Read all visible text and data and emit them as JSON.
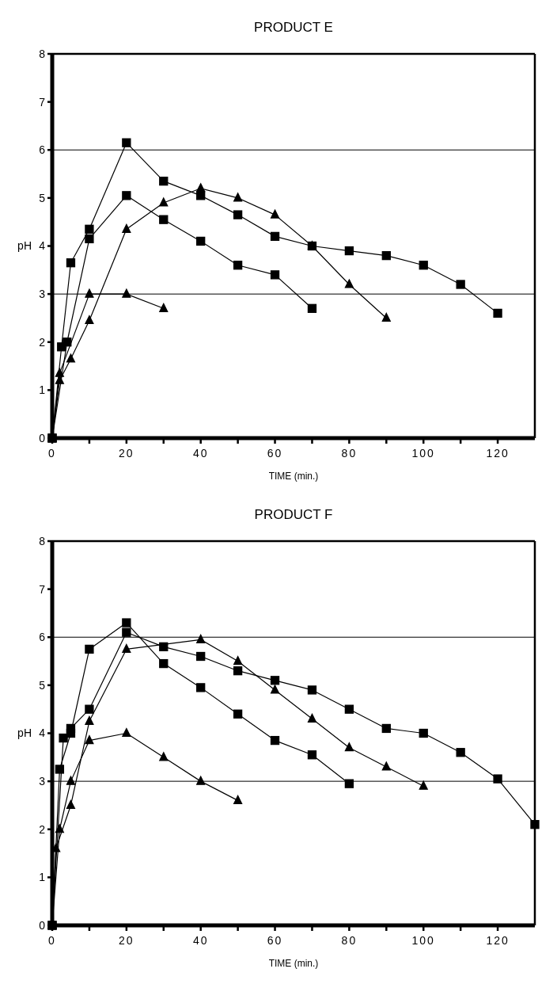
{
  "chart_data": [
    {
      "type": "line",
      "title": "PRODUCT E",
      "xlabel": "TIME (min.)",
      "ylabel": "pH",
      "xlim": [
        0,
        130
      ],
      "ylim": [
        0,
        8
      ],
      "xticks": [
        0,
        {
          "value": 10,
          "label": null
        },
        20,
        {
          "value": 30,
          "label": null
        },
        40,
        {
          "value": 50,
          "label": null
        },
        60,
        {
          "value": 70,
          "label": null
        },
        80,
        {
          "value": 90,
          "label": null
        },
        100,
        {
          "value": 110,
          "label": null
        },
        120
      ],
      "yticks": [
        0,
        1,
        2,
        3,
        4,
        5,
        6,
        7,
        8
      ],
      "grid": false,
      "ref_lines": [
        {
          "axis": "y",
          "value": 6,
          "color": "#000000"
        },
        {
          "axis": "y",
          "value": 3,
          "color": "#000000"
        }
      ],
      "series": [
        {
          "color": "#000000",
          "marker": "square",
          "x": [
            0,
            2.5,
            5,
            10,
            20,
            30,
            40,
            50,
            60,
            70,
            80,
            90,
            100,
            110,
            120
          ],
          "values": [
            0,
            1.9,
            3.65,
            4.35,
            6.15,
            5.35,
            5.05,
            4.65,
            4.2,
            4.0,
            3.9,
            3.8,
            3.6,
            3.2,
            2.6
          ]
        },
        {
          "color": "#000000",
          "marker": "square",
          "x": [
            0,
            4,
            10,
            20,
            30,
            40,
            50,
            60,
            70
          ],
          "values": [
            0,
            2.0,
            4.15,
            5.05,
            4.55,
            4.1,
            3.6,
            3.4,
            2.7
          ]
        },
        {
          "color": "#000000",
          "marker": "triangle",
          "x": [
            0,
            2,
            5,
            10,
            20,
            30,
            40,
            50,
            60,
            70,
            80,
            90
          ],
          "values": [
            0,
            1.2,
            1.65,
            2.45,
            4.35,
            4.9,
            5.2,
            5.0,
            4.65,
            4.0,
            3.2,
            2.5
          ]
        },
        {
          "color": "#000000",
          "marker": "triangle",
          "x": [
            0,
            2,
            10,
            20,
            30
          ],
          "values": [
            0,
            1.35,
            3.0,
            3.0,
            2.7
          ]
        }
      ]
    },
    {
      "type": "line",
      "title": "PRODUCT F",
      "xlabel": "TIME (min.)",
      "ylabel": "pH",
      "xlim": [
        0,
        130
      ],
      "ylim": [
        0,
        8
      ],
      "xticks": [
        0,
        {
          "value": 10,
          "label": null
        },
        20,
        {
          "value": 30,
          "label": null
        },
        40,
        {
          "value": 50,
          "label": null
        },
        60,
        {
          "value": 70,
          "label": null
        },
        80,
        {
          "value": 90,
          "label": null
        },
        100,
        {
          "value": 110,
          "label": null
        },
        120
      ],
      "yticks": [
        0,
        1,
        2,
        3,
        4,
        5,
        6,
        7,
        8
      ],
      "grid": false,
      "ref_lines": [
        {
          "axis": "y",
          "value": 6,
          "color": "#000000"
        },
        {
          "axis": "y",
          "value": 3,
          "color": "#000000"
        }
      ],
      "series": [
        {
          "color": "#000000",
          "marker": "square",
          "x": [
            0,
            3,
            5,
            10,
            20,
            30,
            40,
            50,
            60,
            70,
            80,
            90,
            100,
            110,
            120,
            130
          ],
          "values": [
            0,
            3.9,
            4.1,
            4.5,
            6.1,
            5.8,
            5.6,
            5.3,
            5.1,
            4.9,
            4.5,
            4.1,
            4.0,
            3.6,
            3.05,
            2.1
          ]
        },
        {
          "color": "#000000",
          "marker": "square",
          "x": [
            0,
            2,
            5,
            10,
            20,
            30,
            40,
            50,
            60,
            70,
            80
          ],
          "values": [
            0,
            3.25,
            4.0,
            5.75,
            6.3,
            5.45,
            4.95,
            4.4,
            3.85,
            3.55,
            2.95
          ]
        },
        {
          "color": "#000000",
          "marker": "triangle",
          "x": [
            0,
            1,
            5,
            10,
            20,
            40,
            50,
            60,
            70,
            80,
            90,
            100
          ],
          "values": [
            0,
            1.6,
            2.5,
            4.25,
            5.75,
            5.95,
            5.5,
            4.9,
            4.3,
            3.7,
            3.3,
            2.9
          ]
        },
        {
          "color": "#000000",
          "marker": "triangle",
          "x": [
            0,
            2,
            5,
            10,
            20,
            30,
            40,
            50
          ],
          "values": [
            0,
            2.0,
            3.0,
            3.85,
            4.0,
            3.5,
            3.0,
            2.6
          ]
        }
      ]
    }
  ]
}
